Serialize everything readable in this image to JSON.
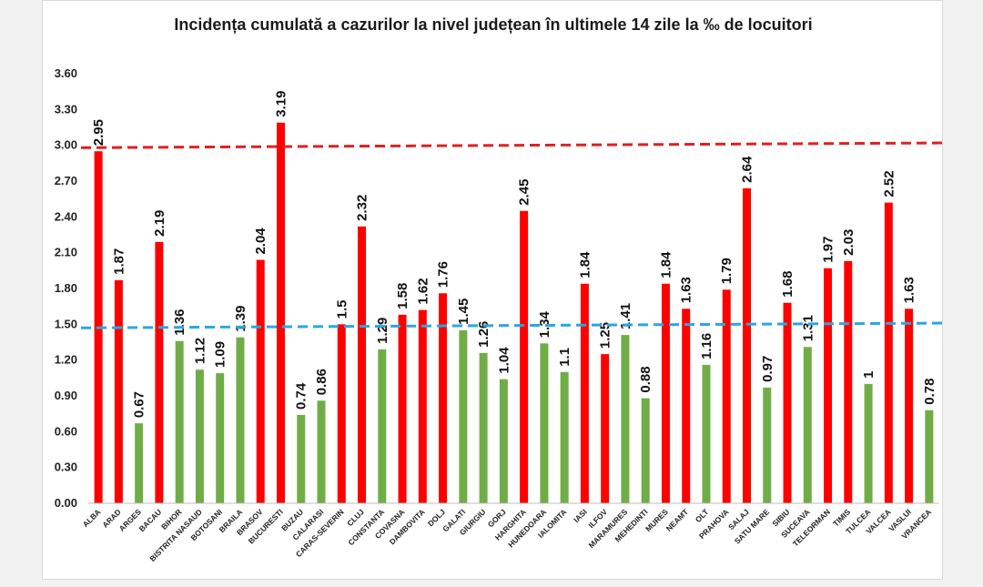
{
  "chart_data": {
    "type": "bar",
    "title": "Incidența cumulată a cazurilor la nivel județean în ultimele 14 zile la ‰ de locuitori",
    "xlabel": "",
    "ylabel": "",
    "ylim": [
      0,
      3.6
    ],
    "yticks": [
      "0.00",
      "0.30",
      "0.60",
      "0.90",
      "1.20",
      "1.50",
      "1.80",
      "2.10",
      "2.40",
      "2.70",
      "3.00",
      "3.30",
      "3.60"
    ],
    "grid": false,
    "categories": [
      "ALBA",
      "ARAD",
      "ARGES",
      "BACAU",
      "BIHOR",
      "BISTRITA NASAUD",
      "BOTOSANI",
      "BRAILA",
      "BRASOV",
      "BUCURESTI",
      "BUZAU",
      "CALARASI",
      "CARAS-SEVERIN",
      "CLUJ",
      "CONSTANTA",
      "COVASNA",
      "DAMBOVITA",
      "DOLJ",
      "GALATI",
      "GIURGIU",
      "GORJ",
      "HARGHITA",
      "HUNEDOARA",
      "IALOMITA",
      "IASI",
      "ILFOV",
      "MARAMURES",
      "MEHEDINTI",
      "MURES",
      "NEAMT",
      "OLT",
      "PRAHOVA",
      "SALAJ",
      "SATU MARE",
      "SIBIU",
      "SUCEAVA",
      "TELEORMAN",
      "TIMIS",
      "TULCEA",
      "VALCEA",
      "VASLUI",
      "VRANCEA"
    ],
    "values": [
      2.95,
      1.87,
      0.67,
      2.19,
      1.36,
      1.12,
      1.09,
      1.39,
      2.04,
      3.19,
      0.74,
      0.86,
      1.5,
      2.32,
      1.29,
      1.58,
      1.62,
      1.76,
      1.45,
      1.26,
      1.04,
      2.45,
      1.34,
      1.1,
      1.84,
      1.25,
      1.41,
      0.88,
      1.84,
      1.63,
      1.16,
      1.79,
      2.64,
      0.97,
      1.68,
      1.31,
      1.97,
      2.03,
      1,
      2.52,
      1.63,
      0.78
    ],
    "data_labels": [
      "2.95",
      "1.87",
      "0.67",
      "2.19",
      "1.36",
      "1.12",
      "1.09",
      "1.39",
      "2.04",
      "3.19",
      "0.74",
      "0.86",
      "1.5",
      "2.32",
      "1.29",
      "1.58",
      "1.62",
      "1.76",
      "1.45",
      "1.26",
      "1.04",
      "2.45",
      "1.34",
      "1.1",
      "1.84",
      "1.25",
      "1.41",
      "0.88",
      "1.84",
      "1.63",
      "1.16",
      "1.79",
      "2.64",
      "0.97",
      "1.68",
      "1.31",
      "1.97",
      "2.03",
      "1",
      "2.52",
      "1.63",
      "0.78"
    ],
    "bar_colors": [
      "red",
      "red",
      "green",
      "red",
      "green",
      "green",
      "green",
      "green",
      "red",
      "red",
      "green",
      "green",
      "red",
      "red",
      "green",
      "red",
      "red",
      "red",
      "green",
      "green",
      "green",
      "red",
      "green",
      "green",
      "red",
      "red",
      "green",
      "green",
      "red",
      "red",
      "green",
      "red",
      "red",
      "green",
      "red",
      "green",
      "red",
      "red",
      "green",
      "red",
      "red",
      "green"
    ],
    "reference_lines": [
      {
        "value_start": 2.98,
        "value_end": 3.02,
        "color": "#e02020",
        "style": "dashed"
      },
      {
        "value_start": 1.47,
        "value_end": 1.51,
        "color": "#29a8e0",
        "style": "dashed"
      }
    ],
    "colors": {
      "red": "#ff0000",
      "green": "#70ad47"
    }
  }
}
